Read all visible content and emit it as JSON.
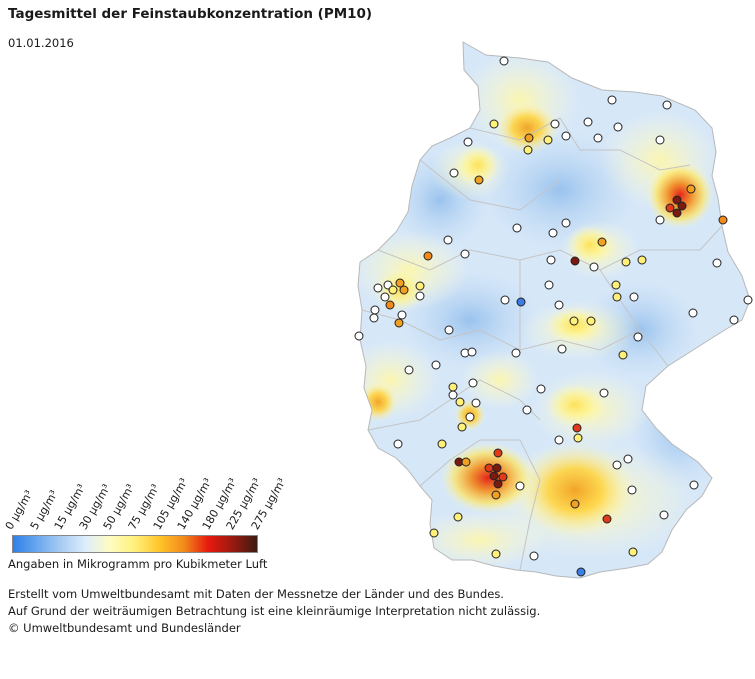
{
  "header": {
    "title": "Tagesmittel der Feinstaubkonzentration (PM10)",
    "date": "01.01.2016"
  },
  "legend": {
    "ticks": [
      "0 µg/m³",
      "5 µg/m³",
      "15 µg/m³",
      "30 µg/m³",
      "50 µg/m³",
      "75 µg/m³",
      "105 µg/m³",
      "140 µg/m³",
      "180 µg/m³",
      "225 µg/m³",
      "275 µg/m³"
    ],
    "colors": [
      "#2f7fe8",
      "#6aa8ef",
      "#a9cdf3",
      "#dfeefb",
      "#fffcc0",
      "#fff07a",
      "#ffc52a",
      "#f28a1a",
      "#e61a10",
      "#9a1a10",
      "#3d1a10"
    ],
    "caption": "Angaben in Mikrogramm pro Kubikmeter Luft"
  },
  "footer": {
    "lines": [
      "Erstellt vom Umweltbundesamt mit Daten der Messnetze der Länder und des Bundes.",
      "Auf Grund der weiträumigen Betrachtung ist eine kleinräumige Interpretation nicht zulässig.",
      "© Umweltbundesamt und Bundesländer"
    ]
  },
  "map": {
    "base_color": "#dbeaf8",
    "low_color": "#9cc4ee",
    "border_color": "#c8c8c8",
    "station_colors": {
      "white": "#ffffff",
      "yellow": "#fff07a",
      "orange": "#f2a020",
      "red": "#e03a1a",
      "darkred": "#7a1a10",
      "blue": "#3b7ee6"
    }
  }
}
